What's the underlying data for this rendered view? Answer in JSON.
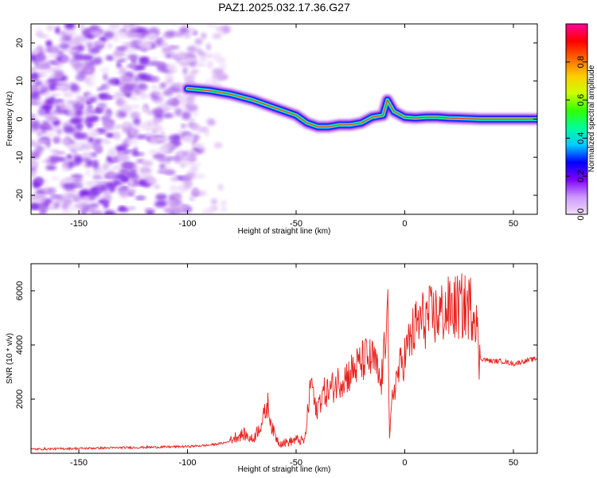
{
  "title": "PAZ1.2025.032.17.36.G27",
  "chart_data": [
    {
      "type": "heatmap",
      "xlabel": "Height of straight line (km)",
      "ylabel": "Frequency (Hz)",
      "xlim": [
        -172,
        61
      ],
      "ylim": [
        -25,
        25
      ],
      "x_ticks": [
        -150,
        -100,
        -50,
        0,
        50
      ],
      "x_tick_labels": [
        "-150",
        "-100",
        "-50",
        "0",
        "50"
      ],
      "y_ticks": [
        -20,
        -10,
        0,
        10,
        20
      ],
      "y_tick_labels": [
        "-20",
        "-10",
        "0",
        "10",
        "20"
      ],
      "colorbar": {
        "label": "Normalized spectral amplitude",
        "range": [
          0,
          1
        ],
        "ticks": [
          0,
          0.2,
          0.4,
          0.6,
          0.8
        ],
        "tick_labels": [
          "0.0",
          "0.2",
          "0.4",
          "0.6",
          "0.8"
        ],
        "colors": [
          "#f2dcf7",
          "#cc99ff",
          "#8000ff",
          "#0000ff",
          "#00ccff",
          "#00ff99",
          "#33ff00",
          "#ccff00",
          "#ffcc00",
          "#ff6600",
          "#ff0000",
          "#ff0099"
        ]
      },
      "ridge": {
        "x": [
          -100,
          -90,
          -80,
          -70,
          -60,
          -50,
          -45,
          -40,
          -35,
          -30,
          -25,
          -20,
          -15,
          -10,
          -8,
          -5,
          0,
          5,
          10,
          15,
          20,
          25,
          30,
          35,
          40,
          50,
          61
        ],
        "frequency": [
          8,
          7.5,
          6.5,
          5,
          3,
          1,
          -1,
          -2,
          -2,
          -1.5,
          -1.5,
          -1,
          0.5,
          1,
          5,
          2,
          0.5,
          0.3,
          0.5,
          0.5,
          0.3,
          0.2,
          0.1,
          0,
          0,
          0,
          0
        ]
      }
    },
    {
      "type": "line",
      "xlabel": "Height of straight line (km)",
      "ylabel": "SNR (10 * v/v)",
      "xlim": [
        -172,
        61
      ],
      "ylim": [
        0,
        7000
      ],
      "x_ticks": [
        -150,
        -100,
        -50,
        0,
        50
      ],
      "x_tick_labels": [
        "-150",
        "-100",
        "-50",
        "0",
        "50"
      ],
      "y_ticks": [
        2000,
        4000,
        6000
      ],
      "y_tick_labels": [
        "2000",
        "4000",
        "6000"
      ],
      "series_color": "#e8201c",
      "x": [
        -172,
        -150,
        -120,
        -100,
        -90,
        -82,
        -78,
        -74,
        -70,
        -66,
        -63,
        -61,
        -58,
        -54,
        -50,
        -46,
        -43,
        -41,
        -38,
        -35,
        -30,
        -26,
        -22,
        -18,
        -14,
        -11,
        -9,
        -8,
        -7,
        -6,
        -5,
        -3,
        0,
        3,
        6,
        10,
        15,
        20,
        25,
        30,
        33,
        34,
        35,
        40,
        45,
        50,
        55,
        61
      ],
      "y": [
        150,
        180,
        220,
        250,
        300,
        400,
        600,
        700,
        500,
        1100,
        1800,
        900,
        400,
        400,
        500,
        450,
        2800,
        1500,
        2200,
        2300,
        2700,
        2900,
        3200,
        3500,
        3400,
        2500,
        4000,
        6900,
        400,
        1800,
        2400,
        3000,
        3600,
        4300,
        4800,
        5000,
        5100,
        5300,
        5400,
        5400,
        5300,
        3300,
        3500,
        3400,
        3400,
        3300,
        3400,
        3500
      ]
    }
  ]
}
